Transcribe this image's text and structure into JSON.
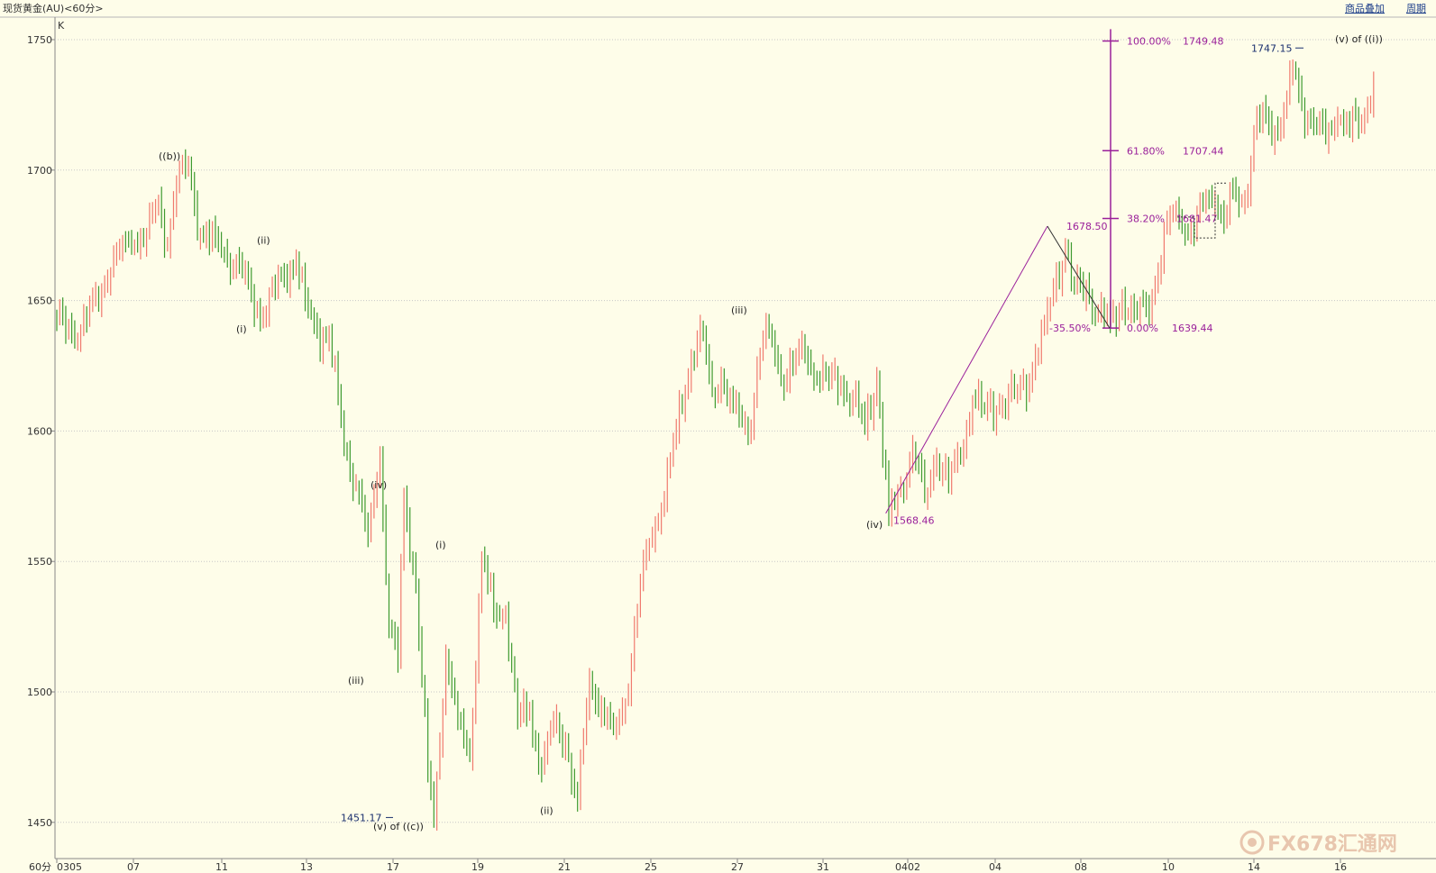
{
  "header": {
    "symbol_title": "现货黄金(AU)<60分>",
    "overlay_link": "商品叠加",
    "period_link": "周期"
  },
  "panel_label": "K",
  "period_label": "60分",
  "watermark": {
    "text": "FX678汇通网"
  },
  "colors": {
    "background": "#fefde9",
    "up": "#f07a6e",
    "down": "#3e9a2f",
    "fib": "#9a1f9a",
    "grid": "#c8c8c8",
    "axis": "#888888"
  },
  "chart_data": {
    "type": "candlestick",
    "title": "现货黄金(AU)<60分>",
    "ylim": [
      1445,
      1757
    ],
    "y_ticks": [
      "1750",
      "1700",
      "1650",
      "1600",
      "1550",
      "1500",
      "1450"
    ],
    "y_tick_values": [
      1750,
      1700,
      1650,
      1600,
      1550,
      1500,
      1450
    ],
    "x_ticks": [
      "0305",
      "07",
      "11",
      "13",
      "17",
      "19",
      "21",
      "25",
      "27",
      "31",
      "0402",
      "04",
      "08",
      "10",
      "14",
      "16"
    ],
    "grid": true,
    "anchors": [
      {
        "i": 0,
        "p": 1643
      },
      {
        "i": 8,
        "p": 1638
      },
      {
        "i": 20,
        "p": 1668
      },
      {
        "i": 25,
        "p": 1672
      },
      {
        "i": 30,
        "p": 1676
      },
      {
        "i": 34,
        "p": 1688
      },
      {
        "i": 37,
        "p": 1672
      },
      {
        "i": 40,
        "p": 1694
      },
      {
        "i": 44,
        "p": 1702
      },
      {
        "i": 48,
        "p": 1675
      },
      {
        "i": 55,
        "p": 1670
      },
      {
        "i": 62,
        "p": 1660
      },
      {
        "i": 69,
        "p": 1643
      },
      {
        "i": 75,
        "p": 1660
      },
      {
        "i": 80,
        "p": 1665
      },
      {
        "i": 83,
        "p": 1650
      },
      {
        "i": 87,
        "p": 1638
      },
      {
        "i": 91,
        "p": 1636
      },
      {
        "i": 96,
        "p": 1595
      },
      {
        "i": 100,
        "p": 1580
      },
      {
        "i": 104,
        "p": 1560
      },
      {
        "i": 108,
        "p": 1592
      },
      {
        "i": 111,
        "p": 1525
      },
      {
        "i": 114,
        "p": 1512
      },
      {
        "i": 116,
        "p": 1576
      },
      {
        "i": 120,
        "p": 1540
      },
      {
        "i": 124,
        "p": 1470
      },
      {
        "i": 126,
        "p": 1452
      },
      {
        "i": 130,
        "p": 1515
      },
      {
        "i": 134,
        "p": 1490
      },
      {
        "i": 138,
        "p": 1475
      },
      {
        "i": 142,
        "p": 1552
      },
      {
        "i": 146,
        "p": 1530
      },
      {
        "i": 150,
        "p": 1530
      },
      {
        "i": 154,
        "p": 1490
      },
      {
        "i": 158,
        "p": 1492
      },
      {
        "i": 162,
        "p": 1470
      },
      {
        "i": 166,
        "p": 1488
      },
      {
        "i": 170,
        "p": 1480
      },
      {
        "i": 174,
        "p": 1458
      },
      {
        "i": 178,
        "p": 1505
      },
      {
        "i": 182,
        "p": 1495
      },
      {
        "i": 186,
        "p": 1485
      },
      {
        "i": 190,
        "p": 1495
      },
      {
        "i": 193,
        "p": 1525
      },
      {
        "i": 197,
        "p": 1555
      },
      {
        "i": 202,
        "p": 1570
      },
      {
        "i": 207,
        "p": 1600
      },
      {
        "i": 212,
        "p": 1628
      },
      {
        "i": 215,
        "p": 1640
      },
      {
        "i": 219,
        "p": 1615
      },
      {
        "i": 222,
        "p": 1620
      },
      {
        "i": 226,
        "p": 1610
      },
      {
        "i": 231,
        "p": 1598
      },
      {
        "i": 235,
        "p": 1630
      },
      {
        "i": 238,
        "p": 1640
      },
      {
        "i": 242,
        "p": 1620
      },
      {
        "i": 246,
        "p": 1625
      },
      {
        "i": 250,
        "p": 1630
      },
      {
        "i": 254,
        "p": 1620
      },
      {
        "i": 258,
        "p": 1620
      },
      {
        "i": 262,
        "p": 1618
      },
      {
        "i": 266,
        "p": 1612
      },
      {
        "i": 270,
        "p": 1602
      },
      {
        "i": 274,
        "p": 1620
      },
      {
        "i": 278,
        "p": 1568
      },
      {
        "i": 282,
        "p": 1578
      },
      {
        "i": 286,
        "p": 1594
      },
      {
        "i": 290,
        "p": 1575
      },
      {
        "i": 294,
        "p": 1590
      },
      {
        "i": 298,
        "p": 1580
      },
      {
        "i": 302,
        "p": 1590
      },
      {
        "i": 306,
        "p": 1612
      },
      {
        "i": 310,
        "p": 1608
      },
      {
        "i": 315,
        "p": 1610
      },
      {
        "i": 320,
        "p": 1614
      },
      {
        "i": 325,
        "p": 1620
      },
      {
        "i": 330,
        "p": 1640
      },
      {
        "i": 334,
        "p": 1660
      },
      {
        "i": 337,
        "p": 1670
      },
      {
        "i": 340,
        "p": 1655
      },
      {
        "i": 344,
        "p": 1655
      },
      {
        "i": 348,
        "p": 1645
      },
      {
        "i": 352,
        "p": 1642
      },
      {
        "i": 356,
        "p": 1650
      },
      {
        "i": 360,
        "p": 1645
      },
      {
        "i": 364,
        "p": 1648
      },
      {
        "i": 368,
        "p": 1660
      },
      {
        "i": 371,
        "p": 1680
      },
      {
        "i": 374,
        "p": 1685
      },
      {
        "i": 376,
        "p": 1678
      },
      {
        "i": 380,
        "p": 1675
      },
      {
        "i": 384,
        "p": 1690
      },
      {
        "i": 387,
        "p": 1688
      },
      {
        "i": 390,
        "p": 1680
      },
      {
        "i": 393,
        "p": 1692
      },
      {
        "i": 397,
        "p": 1688
      },
      {
        "i": 401,
        "p": 1720
      },
      {
        "i": 405,
        "p": 1718
      },
      {
        "i": 408,
        "p": 1715
      },
      {
        "i": 411,
        "p": 1728
      },
      {
        "i": 413,
        "p": 1738
      },
      {
        "i": 416,
        "p": 1725
      },
      {
        "i": 420,
        "p": 1718
      },
      {
        "i": 424,
        "p": 1712
      },
      {
        "i": 428,
        "p": 1720
      },
      {
        "i": 432,
        "p": 1716
      },
      {
        "i": 436,
        "p": 1718
      },
      {
        "i": 440,
        "p": 1735
      }
    ],
    "wave_labels": [
      {
        "text": "((b))",
        "price": 1702
      },
      {
        "text": "(i)",
        "price": 1643
      },
      {
        "text": "(ii)",
        "price": 1670
      },
      {
        "text": "(iii)",
        "price": 1508
      },
      {
        "text": "(iv)",
        "price": 1576
      },
      {
        "text": "(v) of ((c))",
        "price": 1452
      },
      {
        "text": "(i)",
        "price": 1553
      },
      {
        "text": "(ii)",
        "price": 1458
      },
      {
        "text": "(iii)",
        "price": 1643
      },
      {
        "text": "(iv)",
        "price": 1568
      },
      {
        "text": "(v) of ((i))",
        "price": 1749
      }
    ],
    "price_markers": [
      {
        "text": "1451.17",
        "price": 1451.17
      },
      {
        "text": "1747.15",
        "price": 1747.15
      }
    ],
    "fibonacci": {
      "levels": [
        {
          "pct": "100.00%",
          "value": "1749.48",
          "price": 1749.48
        },
        {
          "pct": "61.80%",
          "value": "1707.44",
          "price": 1707.44
        },
        {
          "pct": "38.20%",
          "value": "1681.47",
          "price": 1681.47
        },
        {
          "pct": "0.00%",
          "value": "1639.44",
          "price": 1639.44
        }
      ],
      "extension_label": "-35.50%",
      "swing_low": {
        "text": "1568.46",
        "price": 1568.46
      },
      "swing_high": {
        "text": "1678.50",
        "price": 1678.5
      },
      "retrace_low": 1639.44
    }
  }
}
